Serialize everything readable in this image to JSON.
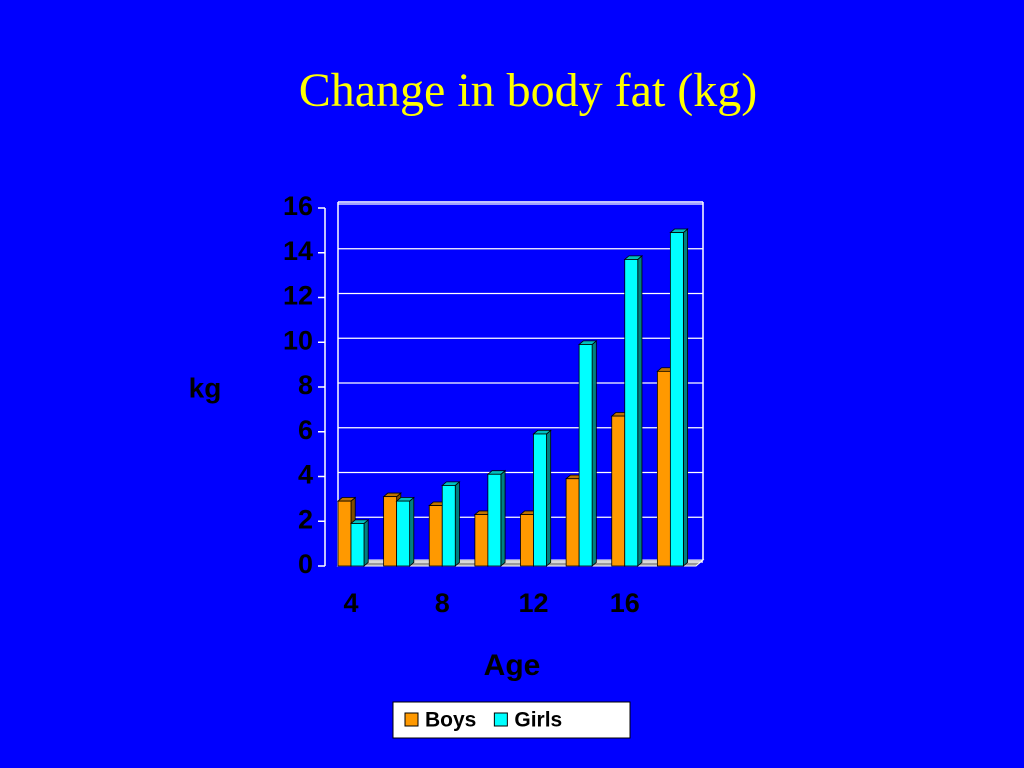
{
  "chart_data": {
    "type": "bar3d",
    "title": "Change in body fat (kg)",
    "x_label": "Age",
    "y_label": "kg",
    "categories": [
      "4",
      null,
      "8",
      null,
      "12",
      null,
      "16",
      null
    ],
    "series": [
      {
        "name": "Boys",
        "color": "#ff9900",
        "values": [
          2.9,
          3.1,
          2.7,
          2.3,
          2.3,
          3.9,
          6.7,
          8.7
        ]
      },
      {
        "name": "Girls",
        "color": "#00ffff",
        "values": [
          1.9,
          2.9,
          3.6,
          4.1,
          5.9,
          9.9,
          13.7,
          14.9
        ]
      }
    ],
    "ylim": [
      0,
      16
    ],
    "yticks": [
      0,
      2,
      4,
      6,
      8,
      10,
      12,
      14,
      16
    ],
    "grid": true,
    "legend": "bottom"
  }
}
